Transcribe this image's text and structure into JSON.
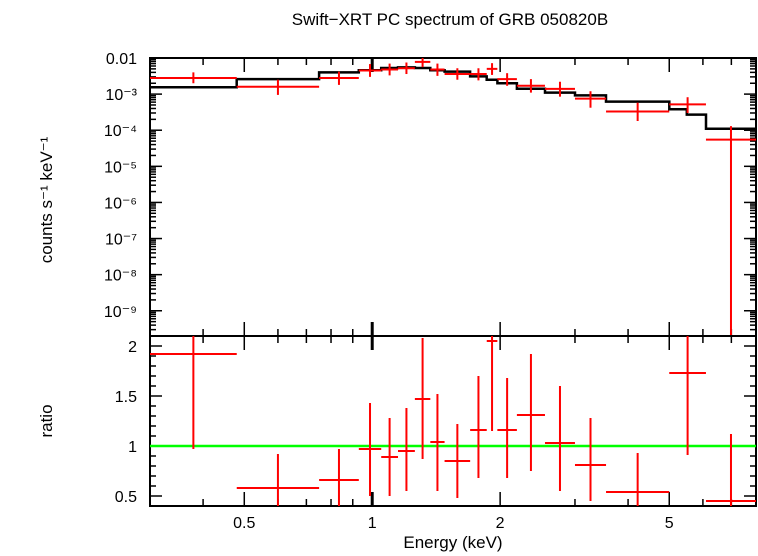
{
  "chart_data": [
    {
      "type": "line",
      "title": "Swift−XRT PC spectrum of GRB 050820B",
      "xlabel": "",
      "ylabel": "counts s⁻¹ keV⁻¹",
      "xscale": "log",
      "yscale": "log",
      "xlim": [
        0.3,
        8.0
      ],
      "ylim": [
        2e-10,
        0.01
      ],
      "y_ticks": [
        {
          "label": "0.01",
          "value": 0.01
        },
        {
          "label": "10⁻³",
          "value": 0.001
        },
        {
          "label": "10⁻⁴",
          "value": 0.0001
        },
        {
          "label": "10⁻⁵",
          "value": 1e-05
        },
        {
          "label": "10⁻⁶",
          "value": 1e-06
        },
        {
          "label": "10⁻⁷",
          "value": 1e-07
        },
        {
          "label": "10⁻⁸",
          "value": 1e-08
        },
        {
          "label": "10⁻⁹",
          "value": 1e-09
        }
      ],
      "data": {
        "name": "data",
        "color": "#ff0000",
        "points": [
          {
            "xlo": 0.3,
            "xhi": 0.48,
            "y": 0.0028,
            "ylo": 0.002,
            "yhi": 0.004
          },
          {
            "xlo": 0.48,
            "xhi": 0.75,
            "y": 0.0016,
            "ylo": 0.00095,
            "yhi": 0.0025
          },
          {
            "xlo": 0.75,
            "xhi": 0.93,
            "y": 0.0028,
            "ylo": 0.0018,
            "yhi": 0.0042
          },
          {
            "xlo": 0.93,
            "xhi": 1.05,
            "y": 0.0045,
            "ylo": 0.003,
            "yhi": 0.0068
          },
          {
            "xlo": 1.05,
            "xhi": 1.15,
            "y": 0.0048,
            "ylo": 0.0033,
            "yhi": 0.007
          },
          {
            "xlo": 1.15,
            "xhi": 1.26,
            "y": 0.0052,
            "ylo": 0.0036,
            "yhi": 0.0075
          },
          {
            "xlo": 1.26,
            "xhi": 1.37,
            "y": 0.0078,
            "ylo": 0.0056,
            "yhi": 0.01
          },
          {
            "xlo": 1.37,
            "xhi": 1.48,
            "y": 0.0048,
            "ylo": 0.0032,
            "yhi": 0.007
          },
          {
            "xlo": 1.48,
            "xhi": 1.7,
            "y": 0.0036,
            "ylo": 0.0025,
            "yhi": 0.0052
          },
          {
            "xlo": 1.7,
            "xhi": 1.86,
            "y": 0.0036,
            "ylo": 0.0024,
            "yhi": 0.0052
          },
          {
            "xlo": 1.86,
            "xhi": 1.97,
            "y": 0.005,
            "ylo": 0.0034,
            "yhi": 0.0072
          },
          {
            "xlo": 1.97,
            "xhi": 2.19,
            "y": 0.0026,
            "ylo": 0.0017,
            "yhi": 0.0038
          },
          {
            "xlo": 2.19,
            "xhi": 2.55,
            "y": 0.0017,
            "ylo": 0.0011,
            "yhi": 0.0026
          },
          {
            "xlo": 2.55,
            "xhi": 3.0,
            "y": 0.0014,
            "ylo": 0.00085,
            "yhi": 0.0022
          },
          {
            "xlo": 3.0,
            "xhi": 3.55,
            "y": 0.00075,
            "ylo": 0.00042,
            "yhi": 0.0012
          },
          {
            "xlo": 3.55,
            "xhi": 5.0,
            "y": 0.00033,
            "ylo": 0.00018,
            "yhi": 0.00058
          },
          {
            "xlo": 5.0,
            "xhi": 6.1,
            "y": 0.00052,
            "ylo": 0.0003,
            "yhi": 0.00082
          },
          {
            "xlo": 6.1,
            "xhi": 8.0,
            "y": 5.5e-05,
            "ylo": 1e-10,
            "yhi": 0.00013
          }
        ]
      },
      "model": {
        "name": "model",
        "color": "#000000",
        "steps": [
          {
            "xlo": 0.3,
            "xhi": 0.48,
            "y": 0.00155
          },
          {
            "xlo": 0.48,
            "xhi": 0.75,
            "y": 0.0026
          },
          {
            "xlo": 0.75,
            "xhi": 0.93,
            "y": 0.004
          },
          {
            "xlo": 0.93,
            "xhi": 1.05,
            "y": 0.0046
          },
          {
            "xlo": 1.05,
            "xhi": 1.15,
            "y": 0.0053
          },
          {
            "xlo": 1.15,
            "xhi": 1.26,
            "y": 0.0055
          },
          {
            "xlo": 1.26,
            "xhi": 1.37,
            "y": 0.0053
          },
          {
            "xlo": 1.37,
            "xhi": 1.48,
            "y": 0.0046
          },
          {
            "xlo": 1.48,
            "xhi": 1.7,
            "y": 0.0042
          },
          {
            "xlo": 1.7,
            "xhi": 1.86,
            "y": 0.0031
          },
          {
            "xlo": 1.86,
            "xhi": 1.97,
            "y": 0.0025
          },
          {
            "xlo": 1.97,
            "xhi": 2.19,
            "y": 0.002
          },
          {
            "xlo": 2.19,
            "xhi": 2.55,
            "y": 0.0014
          },
          {
            "xlo": 2.55,
            "xhi": 3.0,
            "y": 0.0011
          },
          {
            "xlo": 3.0,
            "xhi": 3.55,
            "y": 0.00092
          },
          {
            "xlo": 3.55,
            "xhi": 5.0,
            "y": 0.00062
          },
          {
            "xlo": 5.0,
            "xhi": 5.5,
            "y": 0.00038
          },
          {
            "xlo": 5.5,
            "xhi": 6.1,
            "y": 0.00027
          },
          {
            "xlo": 6.1,
            "xhi": 8.0,
            "y": 0.00011
          }
        ]
      }
    },
    {
      "type": "line",
      "title": "",
      "xlabel": "Energy (keV)",
      "ylabel": "ratio",
      "xscale": "log",
      "yscale": "linear",
      "xlim": [
        0.3,
        8.0
      ],
      "ylim": [
        0.4,
        2.1
      ],
      "x_ticks": [
        {
          "label": "0.5",
          "value": 0.5
        },
        {
          "label": "1",
          "value": 1
        },
        {
          "label": "2",
          "value": 2
        },
        {
          "label": "5",
          "value": 5
        }
      ],
      "y_ticks": [
        {
          "label": "0.5",
          "value": 0.5
        },
        {
          "label": "1",
          "value": 1
        },
        {
          "label": "1.5",
          "value": 1.5
        },
        {
          "label": "2",
          "value": 2
        }
      ],
      "reference_line": {
        "y": 1,
        "color": "#00ff00"
      },
      "data": {
        "name": "ratio",
        "color": "#ff0000",
        "points": [
          {
            "xlo": 0.3,
            "xhi": 0.48,
            "y": 1.92,
            "ylo": 0.97,
            "yhi": 2.1
          },
          {
            "xlo": 0.48,
            "xhi": 0.75,
            "y": 0.58,
            "ylo": 0.4,
            "yhi": 0.92
          },
          {
            "xlo": 0.75,
            "xhi": 0.93,
            "y": 0.66,
            "ylo": 0.4,
            "yhi": 0.97
          },
          {
            "xlo": 0.93,
            "xhi": 1.05,
            "y": 0.97,
            "ylo": 0.5,
            "yhi": 1.43
          },
          {
            "xlo": 1.05,
            "xhi": 1.15,
            "y": 0.89,
            "ylo": 0.5,
            "yhi": 1.28
          },
          {
            "xlo": 1.15,
            "xhi": 1.26,
            "y": 0.95,
            "ylo": 0.55,
            "yhi": 1.38
          },
          {
            "xlo": 1.26,
            "xhi": 1.37,
            "y": 1.47,
            "ylo": 0.87,
            "yhi": 2.08
          },
          {
            "xlo": 1.37,
            "xhi": 1.48,
            "y": 1.04,
            "ylo": 0.55,
            "yhi": 1.52
          },
          {
            "xlo": 1.48,
            "xhi": 1.7,
            "y": 0.85,
            "ylo": 0.48,
            "yhi": 1.22
          },
          {
            "xlo": 1.7,
            "xhi": 1.86,
            "y": 1.16,
            "ylo": 0.68,
            "yhi": 1.7
          },
          {
            "xlo": 1.86,
            "xhi": 1.97,
            "y": 2.05,
            "ylo": 1.15,
            "yhi": 2.1
          },
          {
            "xlo": 1.97,
            "xhi": 2.19,
            "y": 1.16,
            "ylo": 0.68,
            "yhi": 1.68
          },
          {
            "xlo": 2.19,
            "xhi": 2.55,
            "y": 1.31,
            "ylo": 0.75,
            "yhi": 1.92
          },
          {
            "xlo": 2.55,
            "xhi": 3.0,
            "y": 1.03,
            "ylo": 0.55,
            "yhi": 1.6
          },
          {
            "xlo": 3.0,
            "xhi": 3.55,
            "y": 0.81,
            "ylo": 0.45,
            "yhi": 1.28
          },
          {
            "xlo": 3.55,
            "xhi": 5.0,
            "y": 0.54,
            "ylo": 0.4,
            "yhi": 0.93
          },
          {
            "xlo": 5.0,
            "xhi": 6.1,
            "y": 1.73,
            "ylo": 0.91,
            "yhi": 2.1
          },
          {
            "xlo": 6.1,
            "xhi": 8.0,
            "y": 0.45,
            "ylo": 0.4,
            "yhi": 1.12
          }
        ]
      }
    }
  ]
}
